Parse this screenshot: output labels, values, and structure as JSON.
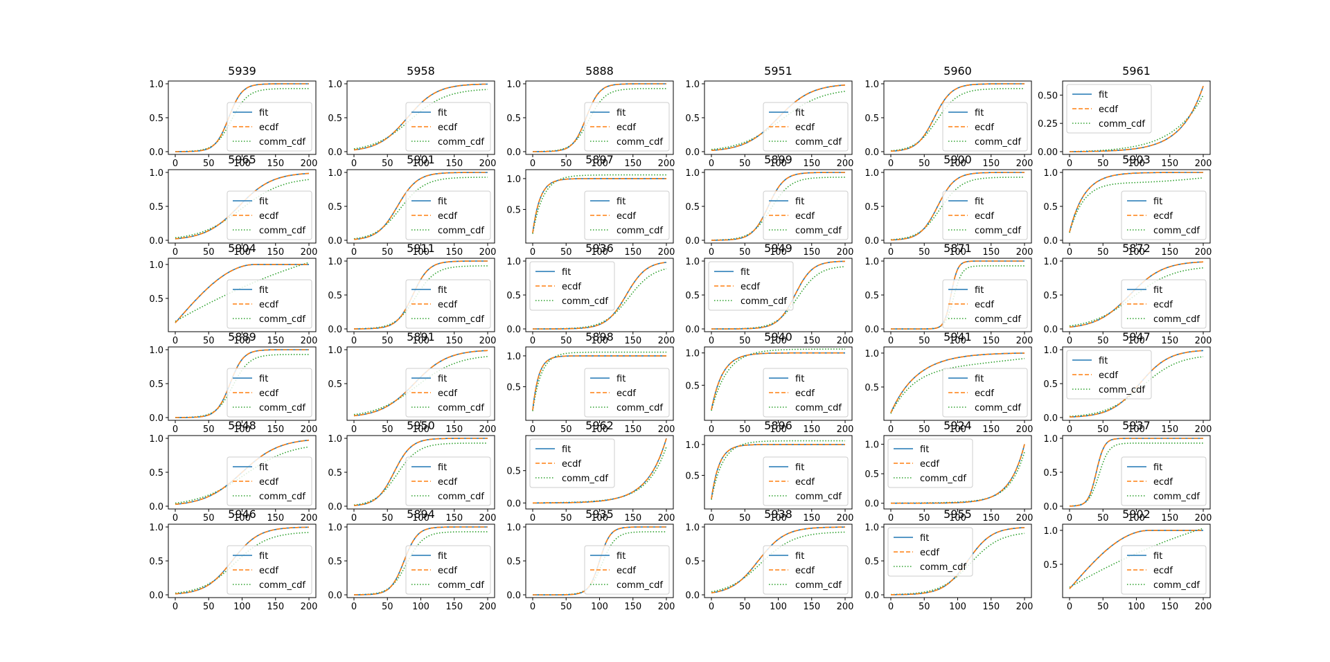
{
  "figure": {
    "type": "small-multiples-cdf",
    "rows": 6,
    "cols": 6,
    "x_ticks": [
      0,
      50,
      100,
      150,
      200
    ],
    "legend_labels": [
      "fit",
      "ecdf",
      "comm_cdf"
    ],
    "colors": {
      "fit": "#1f77b4",
      "ecdf": "#ff7f0e",
      "comm_cdf": "#2ca02c"
    }
  },
  "chart_data": [
    {
      "title": "5939",
      "type": "line",
      "kind": "logistic",
      "m": 80,
      "s": 10,
      "xlim": [
        0,
        200
      ],
      "ylim": [
        0,
        1
      ],
      "yticks": [
        "0.0",
        "0.5",
        "1.0"
      ],
      "legend": "lower-right"
    },
    {
      "title": "5958",
      "type": "line",
      "kind": "logistic",
      "m": 80,
      "s": 22,
      "xlim": [
        0,
        200
      ],
      "ylim": [
        0,
        1
      ],
      "yticks": [
        "0.0",
        "0.5",
        "1.0"
      ],
      "legend": "lower-right"
    },
    {
      "title": "5888",
      "type": "line",
      "kind": "logistic",
      "m": 80,
      "s": 10,
      "xlim": [
        0,
        200
      ],
      "ylim": [
        0,
        1
      ],
      "yticks": [
        "0.0",
        "0.5",
        "1.0"
      ],
      "legend": "lower-right"
    },
    {
      "title": "5951",
      "type": "line",
      "kind": "logistic",
      "m": 100,
      "s": 25,
      "xlim": [
        0,
        200
      ],
      "ylim": [
        0,
        1
      ],
      "yticks": [
        "0.0",
        "0.5",
        "1.0"
      ],
      "legend": "lower-right"
    },
    {
      "title": "5960",
      "type": "line",
      "kind": "logistic",
      "m": 65,
      "s": 13,
      "xlim": [
        0,
        200
      ],
      "ylim": [
        0,
        1
      ],
      "yticks": [
        "0.0",
        "0.5",
        "1.0"
      ],
      "legend": "lower-right"
    },
    {
      "title": "5961",
      "type": "line",
      "kind": "rising",
      "xlim": [
        0,
        200
      ],
      "ylim": [
        0,
        0.6
      ],
      "yticks": [
        "0.00",
        "0.25",
        "0.50"
      ],
      "legend": "upper-left"
    },
    {
      "title": "5965",
      "type": "line",
      "kind": "logistic",
      "m": 95,
      "s": 25,
      "xlim": [
        0,
        200
      ],
      "ylim": [
        0,
        1
      ],
      "yticks": [
        "0.0",
        "0.5",
        "1.0"
      ],
      "legend": "lower-right"
    },
    {
      "title": "5901",
      "type": "line",
      "kind": "logistic",
      "m": 65,
      "s": 15,
      "xlim": [
        0,
        200
      ],
      "ylim": [
        0,
        1
      ],
      "yticks": [
        "0.0",
        "0.5",
        "1.0"
      ],
      "legend": "lower-right"
    },
    {
      "title": "5897",
      "type": "line",
      "kind": "fast",
      "k": 0.09,
      "xlim": [
        0,
        200
      ],
      "ylim": [
        0,
        1.1
      ],
      "yticks": [
        "0.5",
        "1.0"
      ],
      "legend": "lower-right"
    },
    {
      "title": "5899",
      "type": "line",
      "kind": "logistic",
      "m": 85,
      "s": 12,
      "xlim": [
        0,
        200
      ],
      "ylim": [
        0,
        1
      ],
      "yticks": [
        "0.0",
        "0.5",
        "1.0"
      ],
      "legend": "lower-right"
    },
    {
      "title": "5900",
      "type": "line",
      "kind": "logistic",
      "m": 70,
      "s": 13,
      "xlim": [
        0,
        200
      ],
      "ylim": [
        0,
        1
      ],
      "yticks": [
        "0.0",
        "0.5",
        "1.0"
      ],
      "legend": "lower-right"
    },
    {
      "title": "5903",
      "type": "line",
      "kind": "concave",
      "k": 0.045,
      "xlim": [
        0,
        200
      ],
      "ylim": [
        0,
        1
      ],
      "yticks": [
        "0.0",
        "0.5",
        "1.0"
      ],
      "legend": "lower-right"
    },
    {
      "title": "5904",
      "type": "line",
      "kind": "linearish",
      "xlim": [
        0,
        200
      ],
      "ylim": [
        0.05,
        1.05
      ],
      "yticks": [
        "0.5",
        "1.0"
      ],
      "legend": "lower-right"
    },
    {
      "title": "5911",
      "type": "line",
      "kind": "logistic",
      "m": 88,
      "s": 12,
      "xlim": [
        0,
        200
      ],
      "ylim": [
        0,
        1
      ],
      "yticks": [
        "0.0",
        "0.5",
        "1.0"
      ],
      "legend": "lower-right"
    },
    {
      "title": "5936",
      "type": "line",
      "kind": "logistic",
      "m": 140,
      "s": 15,
      "xlim": [
        0,
        200
      ],
      "ylim": [
        0,
        1
      ],
      "yticks": [
        "0.0",
        "0.5",
        "1.0"
      ],
      "legend": "upper-left"
    },
    {
      "title": "5949",
      "type": "line",
      "kind": "logistic",
      "m": 125,
      "s": 13,
      "xlim": [
        0,
        200
      ],
      "ylim": [
        0,
        1
      ],
      "yticks": [
        "0.0",
        "0.5",
        "1.0"
      ],
      "legend": "upper-left"
    },
    {
      "title": "5871",
      "type": "line",
      "kind": "logistic",
      "m": 90,
      "s": 5,
      "xlim": [
        0,
        200
      ],
      "ylim": [
        0,
        1
      ],
      "yticks": [
        "0.0",
        "0.5",
        "1.0"
      ],
      "legend": "lower-right"
    },
    {
      "title": "5872",
      "type": "line",
      "kind": "logistic",
      "m": 90,
      "s": 25,
      "xlim": [
        0,
        200
      ],
      "ylim": [
        0,
        1
      ],
      "yticks": [
        "0.0",
        "0.5",
        "1.0"
      ],
      "legend": "lower-right"
    },
    {
      "title": "5889",
      "type": "line",
      "kind": "logistic",
      "m": 82,
      "s": 10,
      "xlim": [
        0,
        200
      ],
      "ylim": [
        0,
        1
      ],
      "yticks": [
        "0.0",
        "0.5",
        "1.0"
      ],
      "legend": "lower-right"
    },
    {
      "title": "5891",
      "type": "line",
      "kind": "logistic",
      "m": 90,
      "s": 25,
      "xlim": [
        0,
        200
      ],
      "ylim": [
        0,
        1
      ],
      "yticks": [
        "0.5",
        "1.0"
      ],
      "legend": "lower-right"
    },
    {
      "title": "5898",
      "type": "line",
      "kind": "fast",
      "k": 0.11,
      "xlim": [
        0,
        200
      ],
      "ylim": [
        0,
        1.1
      ],
      "yticks": [
        "0.5",
        "1.0"
      ],
      "legend": "lower-right"
    },
    {
      "title": "5940",
      "type": "line",
      "kind": "fast",
      "k": 0.06,
      "xlim": [
        0,
        200
      ],
      "ylim": [
        0,
        1.05
      ],
      "yticks": [
        "0.5",
        "1.0"
      ],
      "legend": "lower-right"
    },
    {
      "title": "5941",
      "type": "line",
      "kind": "concave",
      "k": 0.025,
      "xlim": [
        0,
        200
      ],
      "ylim": [
        0.05,
        1.05
      ],
      "yticks": [
        "0.5",
        "1.0"
      ],
      "legend": "lower-right"
    },
    {
      "title": "5947",
      "type": "line",
      "kind": "logistic",
      "m": 105,
      "s": 22,
      "xlim": [
        0,
        200
      ],
      "ylim": [
        0,
        1
      ],
      "yticks": [
        "0.0",
        "0.5",
        "1.0"
      ],
      "legend": "upper-left"
    },
    {
      "title": "5948",
      "type": "line",
      "kind": "logistic",
      "m": 100,
      "s": 28,
      "xlim": [
        0,
        200
      ],
      "ylim": [
        0,
        1
      ],
      "yticks": [
        "0.0",
        "0.5",
        "1.0"
      ],
      "legend": "lower-right"
    },
    {
      "title": "5950",
      "type": "line",
      "kind": "logistic",
      "m": 60,
      "s": 13,
      "xlim": [
        0,
        200
      ],
      "ylim": [
        0,
        1
      ],
      "yticks": [
        "0.0",
        "0.5",
        "1.0"
      ],
      "legend": "lower-right"
    },
    {
      "title": "5962",
      "type": "line",
      "kind": "late",
      "k": 0.035,
      "xlim": [
        0,
        200
      ],
      "ylim": [
        -0.05,
        1
      ],
      "yticks": [
        "0.0",
        "0.5"
      ],
      "legend": "upper-left"
    },
    {
      "title": "5896",
      "type": "line",
      "kind": "fast",
      "k": 0.085,
      "xlim": [
        0,
        200
      ],
      "ylim": [
        0,
        1.1
      ],
      "yticks": [
        "0.5",
        "1.0"
      ],
      "legend": "lower-right"
    },
    {
      "title": "5924",
      "type": "line",
      "kind": "late",
      "k": 0.045,
      "xlim": [
        0,
        200
      ],
      "ylim": [
        -0.05,
        1.1
      ],
      "yticks": [
        "0.0",
        "0.5",
        "1.0"
      ],
      "legend": "upper-left"
    },
    {
      "title": "5937",
      "type": "line",
      "kind": "logistic",
      "m": 40,
      "s": 6,
      "xlim": [
        0,
        200
      ],
      "ylim": [
        0,
        1
      ],
      "yticks": [
        "0.0",
        "0.5",
        "1.0"
      ],
      "legend": "lower-right"
    },
    {
      "title": "5946",
      "type": "line",
      "kind": "logistic",
      "m": 85,
      "s": 20,
      "xlim": [
        0,
        200
      ],
      "ylim": [
        0,
        1
      ],
      "yticks": [
        "0.0",
        "0.5",
        "1.0"
      ],
      "legend": "lower-right"
    },
    {
      "title": "5894",
      "type": "line",
      "kind": "logistic",
      "m": 75,
      "s": 10,
      "xlim": [
        0,
        200
      ],
      "ylim": [
        0,
        1
      ],
      "yticks": [
        "0.0",
        "0.5",
        "1.0"
      ],
      "legend": "lower-right"
    },
    {
      "title": "5935",
      "type": "line",
      "kind": "logistic",
      "m": 100,
      "s": 8,
      "xlim": [
        0,
        200
      ],
      "ylim": [
        0,
        1
      ],
      "yticks": [
        "0.0",
        "0.5",
        "1.0"
      ],
      "legend": "lower-right"
    },
    {
      "title": "5938",
      "type": "line",
      "kind": "logistic",
      "m": 70,
      "s": 20,
      "xlim": [
        0,
        200
      ],
      "ylim": [
        0,
        1
      ],
      "yticks": [
        "0.0",
        "0.5",
        "1.0"
      ],
      "legend": "lower-right"
    },
    {
      "title": "5955",
      "type": "line",
      "kind": "logistic",
      "m": 115,
      "s": 18,
      "xlim": [
        0,
        200
      ],
      "ylim": [
        0,
        1
      ],
      "yticks": [
        "0.0",
        "0.5",
        "1.0"
      ],
      "legend": "upper-left"
    },
    {
      "title": "5902",
      "type": "line",
      "kind": "linearish",
      "xlim": [
        0,
        200
      ],
      "ylim": [
        0.05,
        1.05
      ],
      "yticks": [
        "0.5",
        "1.0"
      ],
      "legend": "lower-right"
    }
  ]
}
